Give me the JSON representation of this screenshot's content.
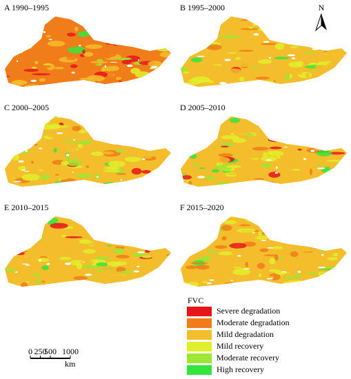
{
  "panels": [
    {
      "title": "A 1990–1995"
    },
    {
      "title": "B 1995–2000"
    },
    {
      "title": "C 2000–2005"
    },
    {
      "title": "D 2005–2010"
    },
    {
      "title": "E 2010–2015"
    },
    {
      "title": "F 2015–2020"
    }
  ],
  "north_arrow": {
    "label": "N"
  },
  "legend": {
    "title": "FVC",
    "items": [
      {
        "label": "Severe degradation",
        "color": "#e8141c"
      },
      {
        "label": "Moderate degradation",
        "color": "#f07d1a"
      },
      {
        "label": "Mild degradation",
        "color": "#f3bd2c"
      },
      {
        "label": "Mild recovery",
        "color": "#e1ee2a"
      },
      {
        "label": "Moderate recovery",
        "color": "#9ee634"
      },
      {
        "label": "High recovery",
        "color": "#34e63c"
      }
    ]
  },
  "scale_bar": {
    "ticks": [
      0,
      250,
      500,
      1000
    ],
    "unit": "km"
  }
}
